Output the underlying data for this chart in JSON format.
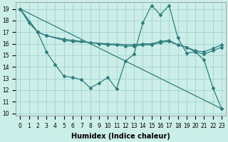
{
  "xlabel": "Humidex (Indice chaleur)",
  "xlim": [
    -0.5,
    23.5
  ],
  "ylim": [
    9.8,
    19.6
  ],
  "yticks": [
    10,
    11,
    12,
    13,
    14,
    15,
    16,
    17,
    18,
    19
  ],
  "xticks": [
    0,
    1,
    2,
    3,
    4,
    5,
    6,
    7,
    8,
    9,
    10,
    11,
    12,
    13,
    14,
    15,
    16,
    17,
    18,
    19,
    20,
    21,
    22,
    23
  ],
  "xtick_labels": [
    "0",
    "1",
    "2",
    "3",
    "4",
    "5",
    "6",
    "7",
    "8",
    "9",
    "10",
    "11",
    "12",
    "13",
    "14",
    "15",
    "16",
    "17",
    "18",
    "19",
    "20",
    "21",
    "22",
    "23"
  ],
  "background_color": "#cceee8",
  "grid_color": "#99cccc",
  "line_color": "#2e7d7d",
  "line1_x": [
    0,
    1,
    2,
    3,
    4,
    5,
    6,
    7,
    8,
    9,
    10,
    11,
    12,
    13,
    14,
    15,
    16,
    17,
    18,
    19,
    20,
    21,
    22,
    23
  ],
  "line1_y": [
    19.0,
    17.8,
    17.0,
    15.3,
    14.2,
    13.2,
    13.1,
    12.9,
    12.2,
    12.6,
    13.1,
    12.1,
    14.5,
    15.1,
    17.8,
    19.3,
    18.5,
    19.3,
    16.5,
    15.2,
    15.3,
    14.6,
    12.2,
    10.4
  ],
  "line2_x": [
    0,
    2,
    3,
    5,
    6,
    7,
    8,
    9,
    10,
    11,
    12,
    13,
    14,
    15,
    16,
    17,
    18,
    19,
    20,
    21,
    22,
    23
  ],
  "line2_y": [
    19.0,
    17.0,
    16.7,
    16.4,
    16.3,
    16.2,
    16.1,
    16.0,
    15.9,
    15.9,
    15.8,
    15.8,
    15.9,
    15.9,
    16.1,
    16.2,
    15.9,
    15.7,
    15.4,
    15.3,
    15.6,
    15.9
  ],
  "line3_x": [
    0,
    23
  ],
  "line3_y": [
    19.0,
    10.4
  ],
  "line4_x": [
    0,
    2,
    3,
    5,
    6,
    10,
    13,
    14,
    15,
    16,
    17,
    18,
    19,
    20,
    21,
    22,
    23
  ],
  "line4_y": [
    19.0,
    17.0,
    16.7,
    16.3,
    16.2,
    16.0,
    15.9,
    16.0,
    16.0,
    16.2,
    16.3,
    15.9,
    15.7,
    15.3,
    15.1,
    15.4,
    15.7
  ],
  "fontsize_label": 7,
  "fontsize_tick": 5.5
}
